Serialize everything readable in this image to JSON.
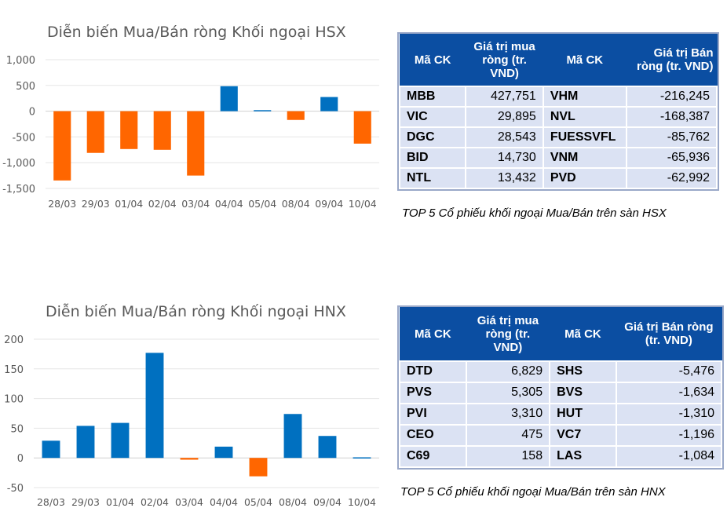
{
  "chart_data": [
    {
      "type": "bar",
      "title": "Diễn biến Mua/Bán ròng Khối ngoại HSX",
      "categories": [
        "28/03",
        "29/03",
        "01/04",
        "02/04",
        "03/04",
        "04/04",
        "05/04",
        "08/04",
        "09/04",
        "10/04"
      ],
      "values": [
        -1345,
        -810,
        -735,
        -750,
        -1250,
        485,
        20,
        -170,
        275,
        -630
      ],
      "ylim": [
        -1500,
        1000
      ],
      "yticks": [
        1000,
        500,
        0,
        -500,
        -1000,
        -1500
      ],
      "ytick_labels": [
        "1,000",
        "500",
        "0",
        "-500",
        "-1,000",
        "-1,500"
      ],
      "grid": true,
      "colors": {
        "positive": "#0070c0",
        "negative": "#ff6600"
      }
    },
    {
      "type": "bar",
      "title": "Diễn biến Mua/Bán ròng Khối ngoại HNX",
      "categories": [
        "28/03",
        "29/03",
        "01/04",
        "02/04",
        "03/04",
        "04/04",
        "05/04",
        "08/04",
        "09/04",
        "10/04"
      ],
      "values": [
        29,
        54,
        59,
        177,
        -3,
        19,
        -31,
        74,
        37,
        1
      ],
      "ylim": [
        -50,
        200
      ],
      "yticks": [
        200,
        150,
        100,
        50,
        0,
        -50
      ],
      "ytick_labels": [
        "200",
        "150",
        "100",
        "50",
        "0",
        "-50"
      ],
      "grid": true,
      "colors": {
        "positive": "#0070c0",
        "negative": "#ff6600"
      }
    }
  ],
  "tables": [
    {
      "headers": [
        "Mã CK",
        "Giá trị mua ròng (tr. VND)",
        "Mã CK",
        "Giá trị Bán ròng (tr. VND)"
      ],
      "rows": [
        [
          "MBB",
          "427,751",
          "VHM",
          "-216,245"
        ],
        [
          "VIC",
          "29,895",
          "NVL",
          "-168,387"
        ],
        [
          "DGC",
          "28,543",
          "FUESSVFL",
          "-85,762"
        ],
        [
          "BID",
          "14,730",
          "VNM",
          "-65,936"
        ],
        [
          "NTL",
          "13,432",
          "PVD",
          "-62,992"
        ]
      ],
      "caption": "TOP 5 Cổ phiếu khối ngoại Mua/Bán trên sàn HSX"
    },
    {
      "headers": [
        "Mã CK",
        "Giá trị mua ròng (tr. VND)",
        "Mã CK",
        "Giá trị Bán ròng (tr. VND)"
      ],
      "rows": [
        [
          "DTD",
          "6,829",
          "SHS",
          "-5,476"
        ],
        [
          "PVS",
          "5,305",
          "BVS",
          "-1,634"
        ],
        [
          "PVI",
          "3,310",
          "HUT",
          "-1,310"
        ],
        [
          "CEO",
          "475",
          "VC7",
          "-1,196"
        ],
        [
          "C69",
          "158",
          "LAS",
          "-1,084"
        ]
      ],
      "caption": "TOP 5 Cổ phiếu khối ngoại Mua/Bán trên sàn HNX"
    }
  ]
}
